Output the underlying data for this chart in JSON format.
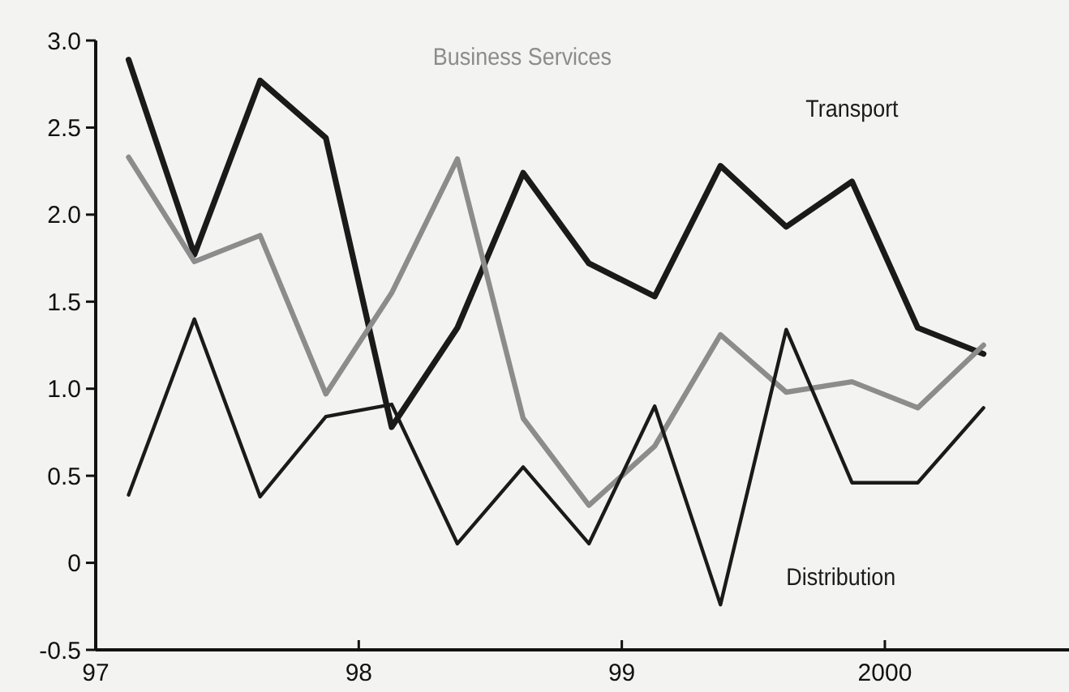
{
  "chart_data": {
    "type": "line",
    "x": [
      1997.125,
      1997.375,
      1997.625,
      1997.875,
      1998.125,
      1998.375,
      1998.625,
      1998.875,
      1999.125,
      1999.375,
      1999.625,
      1999.875,
      2000.125,
      2000.375
    ],
    "series": [
      {
        "name": "Transport",
        "color": "#1a1a1a",
        "values": [
          2.89,
          1.77,
          2.77,
          2.44,
          0.78,
          1.35,
          2.24,
          1.72,
          1.53,
          2.28,
          1.93,
          2.19,
          1.35,
          1.2
        ]
      },
      {
        "name": "Business Services",
        "color": "#8c8c8c",
        "values": [
          2.33,
          1.73,
          1.88,
          0.97,
          1.55,
          2.32,
          0.83,
          0.33,
          0.67,
          1.31,
          0.98,
          1.04,
          0.89,
          1.25
        ]
      },
      {
        "name": "Distribution",
        "color": "#1a1a1a",
        "values": [
          0.39,
          1.4,
          0.38,
          0.84,
          0.91,
          0.11,
          0.55,
          0.11,
          0.9,
          -0.24,
          1.34,
          0.46,
          0.46,
          0.89
        ]
      }
    ],
    "xlim": [
      1997,
      2000.7
    ],
    "xticks": [
      {
        "value": 1997,
        "label": "97"
      },
      {
        "value": 1998,
        "label": "98"
      },
      {
        "value": 1999,
        "label": "99"
      },
      {
        "value": 2000,
        "label": "2000"
      }
    ],
    "ylim": [
      -0.5,
      3.0
    ],
    "yticks": [
      {
        "value": -0.5,
        "label": "-0.5"
      },
      0,
      {
        "value": 0.5,
        "label": "0.5"
      },
      {
        "value": 1,
        "label": "1.0"
      },
      {
        "value": 1.5,
        "label": "1.5"
      },
      {
        "value": 2,
        "label": "2.0"
      },
      {
        "value": 2.5,
        "label": "2.5"
      },
      {
        "value": 3,
        "label": "3.0"
      }
    ],
    "grid": false,
    "marker": "none",
    "line_style": "solid"
  }
}
